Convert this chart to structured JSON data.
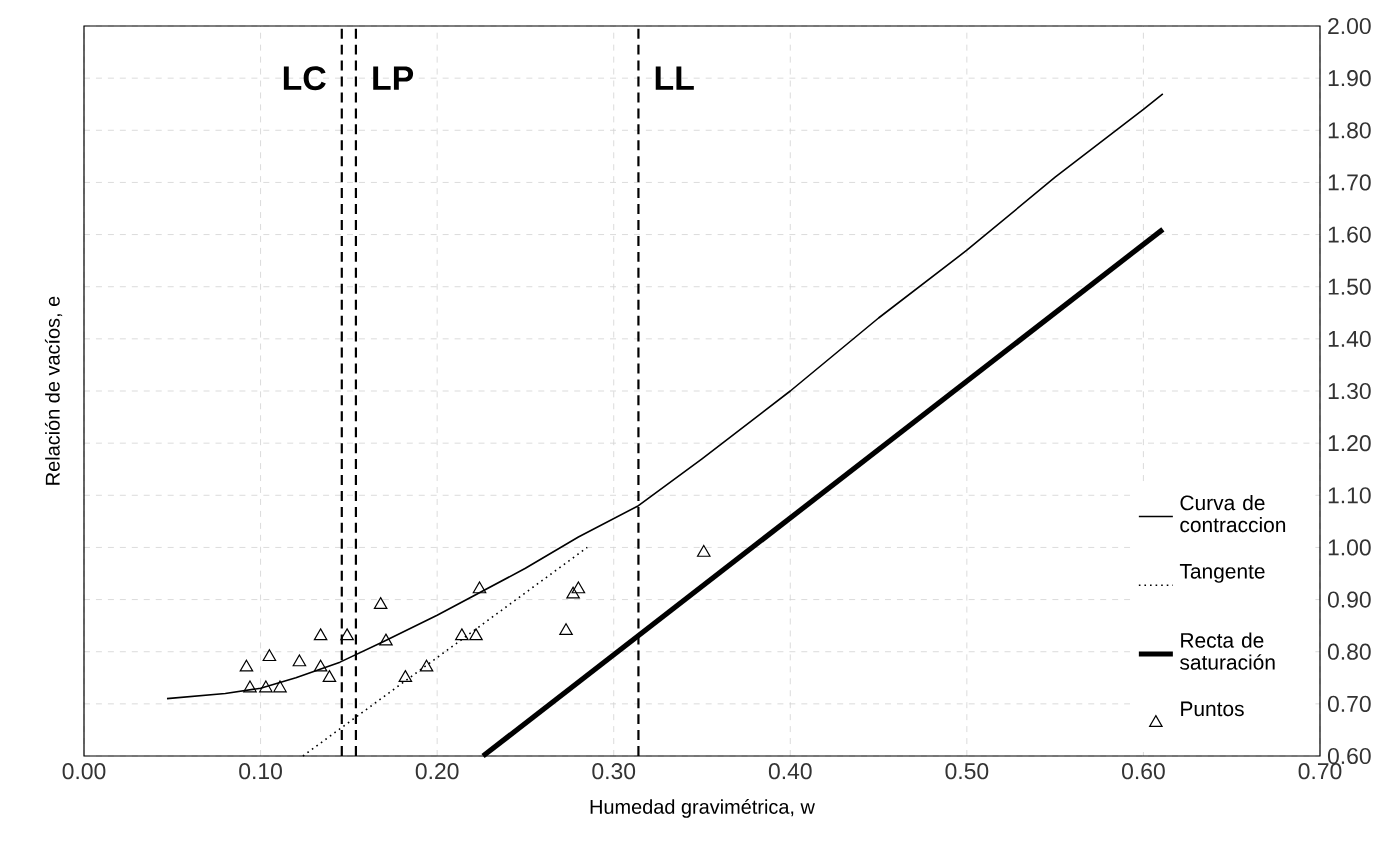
{
  "chart_data": {
    "type": "line",
    "xlabel": "Humedad gravimétrica, w",
    "ylabel": "Relación de vacíos, e",
    "xlim": [
      0,
      0.7
    ],
    "ylim": [
      0.6,
      2.0
    ],
    "xticks": [
      {
        "value": 0,
        "label": "0.00"
      },
      {
        "value": 0.1,
        "label": "0.10"
      },
      {
        "value": 0.2,
        "label": "0.20"
      },
      {
        "value": 0.3,
        "label": "0.30"
      },
      {
        "value": 0.4,
        "label": "0.40"
      },
      {
        "value": 0.5,
        "label": "0.50"
      },
      {
        "value": 0.6,
        "label": "0.60"
      },
      {
        "value": 0.7,
        "label": "0.70"
      }
    ],
    "yticks": [
      {
        "value": 0.6,
        "label": "0.60"
      },
      {
        "value": 0.7,
        "label": "0.70"
      },
      {
        "value": 0.8,
        "label": "0.80"
      },
      {
        "value": 0.9,
        "label": "0.90"
      },
      {
        "value": 1.0,
        "label": "1.00"
      },
      {
        "value": 1.1,
        "label": "1.10"
      },
      {
        "value": 1.2,
        "label": "1.20"
      },
      {
        "value": 1.3,
        "label": "1.30"
      },
      {
        "value": 1.4,
        "label": "1.40"
      },
      {
        "value": 1.5,
        "label": "1.50"
      },
      {
        "value": 1.6,
        "label": "1.60"
      },
      {
        "value": 1.7,
        "label": "1.70"
      },
      {
        "value": 1.8,
        "label": "1.80"
      },
      {
        "value": 1.9,
        "label": "1.90"
      },
      {
        "value": 2.0,
        "label": "2.00"
      }
    ],
    "grid": true,
    "legend": "bottom right",
    "series": [
      {
        "name": "Curva de contraccion",
        "color": "#000000",
        "line_style": "solid",
        "x": [
          0.047,
          0.08,
          0.1,
          0.12,
          0.145,
          0.17,
          0.2,
          0.25,
          0.28,
          0.314,
          0.35,
          0.4,
          0.45,
          0.5,
          0.55,
          0.6,
          0.611
        ],
        "values": [
          0.71,
          0.72,
          0.73,
          0.75,
          0.78,
          0.82,
          0.87,
          0.96,
          1.02,
          1.08,
          1.17,
          1.3,
          1.44,
          1.57,
          1.71,
          1.84,
          1.87
        ]
      },
      {
        "name": "Tangente",
        "color": "#000000",
        "line_style": "dotted",
        "x": [
          0.124,
          0.285
        ],
        "values": [
          0.6,
          1.0
        ]
      },
      {
        "name": "Recta de saturación",
        "color": "#000000",
        "line_style": "solid",
        "x": [
          0.226,
          0.611
        ],
        "values": [
          0.6,
          1.61
        ]
      },
      {
        "name": "Puntos",
        "type": "scatter",
        "color": "#000000",
        "marker": "triangle",
        "x": [
          0.092,
          0.105,
          0.094,
          0.103,
          0.111,
          0.122,
          0.134,
          0.134,
          0.139,
          0.149,
          0.168,
          0.171,
          0.182,
          0.194,
          0.214,
          0.222,
          0.224,
          0.273,
          0.277,
          0.28,
          0.351
        ],
        "values": [
          0.77,
          0.79,
          0.73,
          0.73,
          0.73,
          0.78,
          0.83,
          0.77,
          0.75,
          0.83,
          0.89,
          0.82,
          0.75,
          0.77,
          0.83,
          0.83,
          0.92,
          0.84,
          0.91,
          0.92,
          0.99
        ]
      }
    ],
    "ref_lines": [
      {
        "axis": "x",
        "value": 0.146,
        "label": "LC",
        "color": "#000000",
        "line_style": "dashed"
      },
      {
        "axis": "x",
        "value": 0.154,
        "label": "LP",
        "color": "#000000",
        "line_style": "dashed"
      },
      {
        "axis": "x",
        "value": 0.314,
        "label": "LL",
        "color": "#000000",
        "line_style": "dashed"
      }
    ]
  }
}
